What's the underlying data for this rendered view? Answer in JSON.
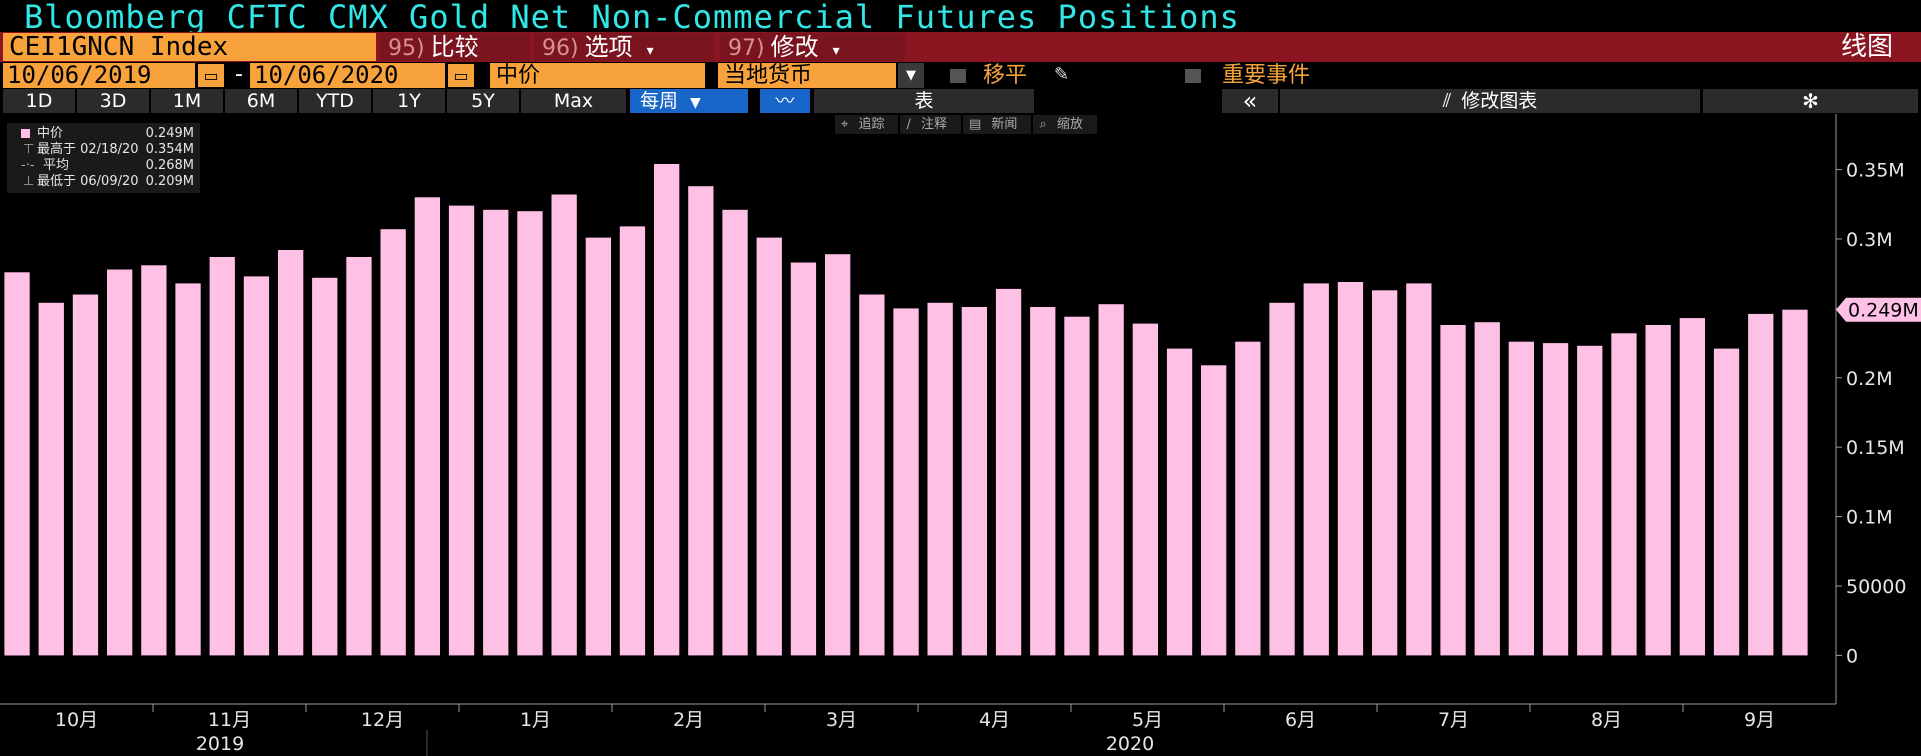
{
  "title": "Bloomberg CFTC CMX Gold Net Non-Commercial Futures Positions",
  "ticker": "CEI1GNCN Index",
  "menu": [
    {
      "num": "95)",
      "label": "比较",
      "chev": ""
    },
    {
      "num": "96)",
      "label": "选项",
      "chev": "▾"
    },
    {
      "num": "97)",
      "label": "修改",
      "chev": "▾"
    }
  ],
  "chart_mode": "线图",
  "date_from": "10/06/2019",
  "date_sep": "-",
  "date_to": "10/06/2020",
  "field": "中价",
  "currency": "当地货币",
  "option1": "移平",
  "option2": "重要事件",
  "ranges": [
    "1D",
    "3D",
    "1M",
    "6M",
    "YTD",
    "1Y",
    "5Y",
    "Max"
  ],
  "period": "每周",
  "table_label": "表",
  "collapse_label": "«",
  "edit_chart_label": "修改图表",
  "tools": [
    "追踪",
    "注释",
    "新闻",
    "缩放"
  ],
  "legend": {
    "rows": [
      {
        "label": "中价",
        "value": "0.249M"
      },
      {
        "label": "最高于 02/18/20",
        "value": "0.354M"
      },
      {
        "label": "平均",
        "value": "0.268M"
      },
      {
        "label": "最低于 06/09/20",
        "value": "0.209M"
      }
    ]
  },
  "colors": {
    "bar": "#ffc0e6",
    "accent": "#f7a23a",
    "title": "#33e6e6",
    "menu": "#8b1520"
  },
  "chart_data": {
    "type": "bar",
    "values": [
      0.276,
      0.254,
      0.26,
      0.278,
      0.281,
      0.268,
      0.287,
      0.273,
      0.292,
      0.272,
      0.287,
      0.307,
      0.33,
      0.324,
      0.321,
      0.32,
      0.332,
      0.301,
      0.309,
      0.354,
      0.338,
      0.321,
      0.301,
      0.283,
      0.289,
      0.26,
      0.25,
      0.254,
      0.251,
      0.264,
      0.251,
      0.244,
      0.253,
      0.239,
      0.221,
      0.209,
      0.226,
      0.254,
      0.268,
      0.269,
      0.263,
      0.268,
      0.238,
      0.24,
      0.226,
      0.225,
      0.223,
      0.232,
      0.238,
      0.243,
      0.221,
      0.246,
      0.249
    ],
    "unit": "M",
    "ylim": [
      -0.035,
      0.39
    ],
    "yticks": [
      {
        "v": 0,
        "label": "0"
      },
      {
        "v": 0.05,
        "label": "50000"
      },
      {
        "v": 0.1,
        "label": "0.1M"
      },
      {
        "v": 0.15,
        "label": "0.15M"
      },
      {
        "v": 0.2,
        "label": "0.2M"
      },
      {
        "v": 0.25,
        "label": "0.25M"
      },
      {
        "v": 0.3,
        "label": "0.3M"
      },
      {
        "v": 0.35,
        "label": "0.35M"
      }
    ],
    "months": [
      "10月",
      "11月",
      "12月",
      "1月",
      "2月",
      "3月",
      "4月",
      "5月",
      "6月",
      "7月",
      "8月",
      "9月"
    ],
    "years": [
      "2019",
      "2020"
    ],
    "last_label": "0.249M",
    "grid": false
  }
}
